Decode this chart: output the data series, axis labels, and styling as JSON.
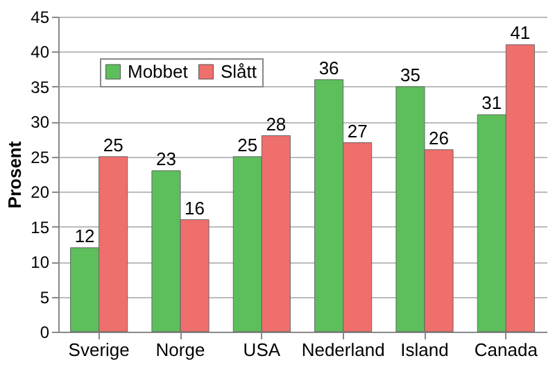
{
  "chart_data": {
    "type": "bar",
    "ylabel": "Prosent",
    "categories": [
      "Sverige",
      "Norge",
      "USA",
      "Nederland",
      "Island",
      "Canada"
    ],
    "series": [
      {
        "name": "Mobbet",
        "color": "#5cbf5c",
        "values": [
          12,
          23,
          25,
          36,
          35,
          31
        ]
      },
      {
        "name": "Slått",
        "color": "#ef6f6c",
        "values": [
          25,
          16,
          28,
          27,
          26,
          41
        ]
      }
    ],
    "ylim": [
      0,
      45
    ],
    "yticks": [
      0,
      5,
      10,
      15,
      20,
      25,
      30,
      35,
      40,
      45
    ],
    "grid": "y",
    "legend": "top left",
    "data_labels": true
  }
}
